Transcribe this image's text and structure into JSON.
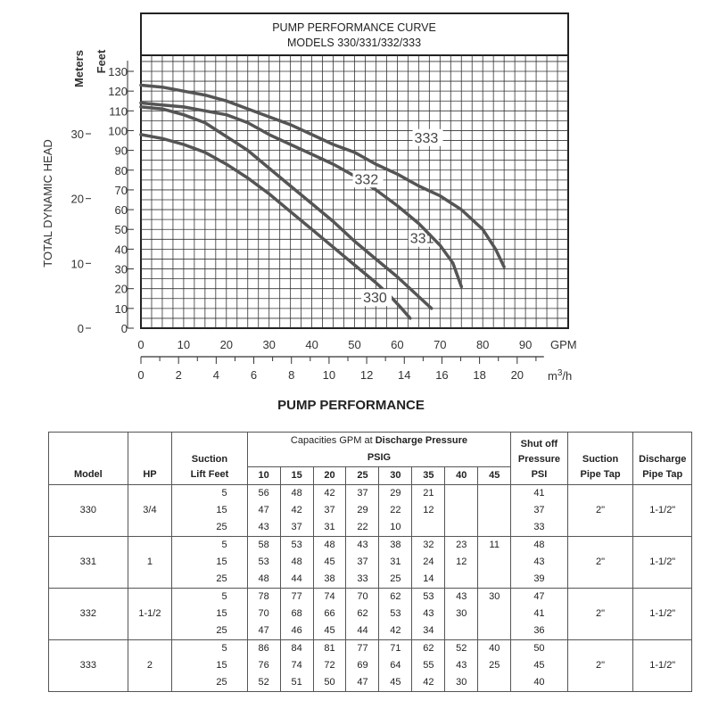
{
  "chart_data": {
    "type": "line",
    "title": "PUMP PERFORMANCE CURVE",
    "subtitle": "MODELS 330/331/332/333",
    "ylabel": "TOTAL DYNAMIC HEAD",
    "y_unit_feet": "Feet",
    "y_unit_meters": "Meters",
    "x_unit_gpm": "GPM",
    "x_unit_m3h": "m3/h",
    "xlim": [
      0,
      100
    ],
    "ylim": [
      0,
      130
    ],
    "grid": true,
    "y_ticks_feet": [
      "0",
      "10",
      "20",
      "30",
      "40",
      "50",
      "60",
      "70",
      "80",
      "90",
      "100",
      "110",
      "120",
      "130"
    ],
    "y_ticks_meters": [
      {
        "label": "0",
        "feet": 0
      },
      {
        "label": "10",
        "feet": 32.8
      },
      {
        "label": "20",
        "feet": 65.6
      },
      {
        "label": "30",
        "feet": 98.4
      }
    ],
    "x_ticks_gpm": [
      "0",
      "10",
      "20",
      "30",
      "40",
      "50",
      "60",
      "70",
      "80",
      "90"
    ],
    "x_ticks_m3h": [
      "0",
      "2",
      "4",
      "6",
      "8",
      "10",
      "12",
      "14",
      "16",
      "18",
      "20"
    ],
    "series": [
      {
        "name": "330",
        "points": [
          [
            0,
            98
          ],
          [
            5,
            96
          ],
          [
            10,
            93
          ],
          [
            15,
            89
          ],
          [
            20,
            83
          ],
          [
            25,
            76
          ],
          [
            30,
            68
          ],
          [
            35,
            59
          ],
          [
            40,
            50
          ],
          [
            45,
            41
          ],
          [
            50,
            32
          ],
          [
            55,
            23
          ],
          [
            58,
            17
          ],
          [
            61,
            10
          ],
          [
            63,
            5
          ]
        ],
        "label_at": [
          52,
          13
        ]
      },
      {
        "name": "331",
        "points": [
          [
            0,
            112
          ],
          [
            5,
            111
          ],
          [
            10,
            108
          ],
          [
            15,
            104
          ],
          [
            20,
            97
          ],
          [
            25,
            90
          ],
          [
            30,
            81
          ],
          [
            35,
            72
          ],
          [
            40,
            63
          ],
          [
            45,
            54
          ],
          [
            50,
            44
          ],
          [
            55,
            35
          ],
          [
            60,
            26
          ],
          [
            65,
            16
          ],
          [
            68,
            10
          ]
        ],
        "label_at": [
          63,
          43
        ]
      },
      {
        "name": "332",
        "points": [
          [
            0,
            114
          ],
          [
            5,
            113
          ],
          [
            10,
            112
          ],
          [
            15,
            110
          ],
          [
            20,
            108
          ],
          [
            25,
            104
          ],
          [
            30,
            98
          ],
          [
            35,
            93
          ],
          [
            40,
            88
          ],
          [
            45,
            83
          ],
          [
            50,
            77
          ],
          [
            55,
            70
          ],
          [
            60,
            62
          ],
          [
            65,
            53
          ],
          [
            70,
            42
          ],
          [
            73,
            33
          ],
          [
            75,
            21
          ]
        ],
        "label_at": [
          50,
          73
        ]
      },
      {
        "name": "333",
        "points": [
          [
            0,
            123
          ],
          [
            5,
            122
          ],
          [
            10,
            120
          ],
          [
            15,
            118
          ],
          [
            20,
            115
          ],
          [
            25,
            111
          ],
          [
            30,
            107
          ],
          [
            35,
            103
          ],
          [
            40,
            98
          ],
          [
            45,
            93
          ],
          [
            50,
            89
          ],
          [
            55,
            83
          ],
          [
            60,
            78
          ],
          [
            65,
            72
          ],
          [
            70,
            67
          ],
          [
            75,
            60
          ],
          [
            80,
            50
          ],
          [
            83,
            40
          ],
          [
            85,
            31
          ]
        ],
        "label_at": [
          64,
          94
        ]
      }
    ]
  },
  "table_title": "PUMP PERFORMANCE",
  "table": {
    "headers": {
      "model": "Model",
      "hp": "HP",
      "suction_lift_1": "Suction",
      "suction_lift_2": "Lift Feet",
      "capacities_prefix": "Capacities GPM at ",
      "capacities_bold": "Discharge Pressure",
      "psig": "PSIG",
      "psi_cols": [
        "10",
        "15",
        "20",
        "25",
        "30",
        "35",
        "40",
        "45"
      ],
      "shutoff_1": "Shut off",
      "shutoff_2": "Pressure",
      "shutoff_3": "PSI",
      "suction_tap_1": "Suction",
      "suction_tap_2": "Pipe Tap",
      "discharge_tap_1": "Discharge",
      "discharge_tap_2": "Pipe Tap"
    },
    "models": [
      {
        "model": "330",
        "hp": "3/4",
        "suction_tap": "2\"",
        "discharge_tap": "1-1/2\"",
        "rows": [
          {
            "lift": "5",
            "values": [
              "56",
              "48",
              "42",
              "37",
              "29",
              "21",
              "",
              ""
            ],
            "shutoff": "41"
          },
          {
            "lift": "15",
            "values": [
              "47",
              "42",
              "37",
              "29",
              "22",
              "12",
              "",
              ""
            ],
            "shutoff": "37"
          },
          {
            "lift": "25",
            "values": [
              "43",
              "37",
              "31",
              "22",
              "10",
              "",
              "",
              ""
            ],
            "shutoff": "33"
          }
        ]
      },
      {
        "model": "331",
        "hp": "1",
        "suction_tap": "2\"",
        "discharge_tap": "1-1/2\"",
        "rows": [
          {
            "lift": "5",
            "values": [
              "58",
              "53",
              "48",
              "43",
              "38",
              "32",
              "23",
              "11"
            ],
            "shutoff": "48"
          },
          {
            "lift": "15",
            "values": [
              "53",
              "48",
              "45",
              "37",
              "31",
              "24",
              "12",
              ""
            ],
            "shutoff": "43"
          },
          {
            "lift": "25",
            "values": [
              "48",
              "44",
              "38",
              "33",
              "25",
              "14",
              "",
              ""
            ],
            "shutoff": "39"
          }
        ]
      },
      {
        "model": "332",
        "hp": "1-1/2",
        "suction_tap": "2\"",
        "discharge_tap": "1-1/2\"",
        "rows": [
          {
            "lift": "5",
            "values": [
              "78",
              "77",
              "74",
              "70",
              "62",
              "53",
              "43",
              "30"
            ],
            "shutoff": "47"
          },
          {
            "lift": "15",
            "values": [
              "70",
              "68",
              "66",
              "62",
              "53",
              "43",
              "30",
              ""
            ],
            "shutoff": "41"
          },
          {
            "lift": "25",
            "values": [
              "47",
              "46",
              "45",
              "44",
              "42",
              "34",
              "",
              ""
            ],
            "shutoff": "36"
          }
        ]
      },
      {
        "model": "333",
        "hp": "2",
        "suction_tap": "2\"",
        "discharge_tap": "1-1/2\"",
        "rows": [
          {
            "lift": "5",
            "values": [
              "86",
              "84",
              "81",
              "77",
              "71",
              "62",
              "52",
              "40"
            ],
            "shutoff": "50"
          },
          {
            "lift": "15",
            "values": [
              "76",
              "74",
              "72",
              "69",
              "64",
              "55",
              "43",
              "25"
            ],
            "shutoff": "45"
          },
          {
            "lift": "25",
            "values": [
              "52",
              "51",
              "50",
              "47",
              "45",
              "42",
              "30",
              ""
            ],
            "shutoff": "40"
          }
        ]
      }
    ]
  }
}
